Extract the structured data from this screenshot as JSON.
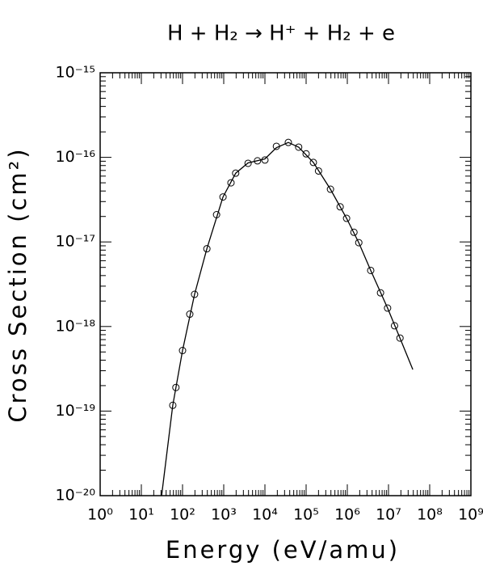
{
  "chart_data": {
    "type": "line",
    "title": "H + H₂ → H⁺ + H₂ + e",
    "x_label": "Energy (eV/amu)",
    "y_label": "Cross Section (cm²)",
    "x_log": true,
    "y_log": true,
    "xlim": [
      1,
      1000000000
    ],
    "ylim": [
      1e-20,
      1e-15
    ],
    "xticks": [
      {
        "value": 1,
        "label": "10⁰"
      },
      {
        "value": 10,
        "label": "10¹"
      },
      {
        "value": 100,
        "label": "10²"
      },
      {
        "value": 1000,
        "label": "10³"
      },
      {
        "value": 10000,
        "label": "10⁴"
      },
      {
        "value": 100000,
        "label": "10⁵"
      },
      {
        "value": 1000000,
        "label": "10⁶"
      },
      {
        "value": 10000000,
        "label": "10⁷"
      },
      {
        "value": 100000000,
        "label": "10⁸"
      },
      {
        "value": 1000000000,
        "label": "10⁹"
      }
    ],
    "yticks": [
      {
        "value": 1e-20,
        "label": "10⁻²⁰"
      },
      {
        "value": 1e-19,
        "label": "10⁻¹⁹"
      },
      {
        "value": 1e-18,
        "label": "10⁻¹⁸"
      },
      {
        "value": 1e-17,
        "label": "10⁻¹⁷"
      },
      {
        "value": 1e-16,
        "label": "10⁻¹⁶"
      },
      {
        "value": 1e-15,
        "label": "10⁻¹⁵"
      }
    ],
    "series": [
      {
        "kind": "markers",
        "color": "#000000",
        "x": [
          58,
          69,
          100,
          150,
          196,
          390,
          670,
          960,
          1500,
          1950,
          3900,
          6600,
          10000,
          19000,
          37000,
          66000,
          100000,
          150000,
          200000,
          390000,
          670000,
          960000,
          1450000,
          1900000,
          3700000,
          6400000,
          9500000,
          14000000,
          19000000
        ],
        "values": [
          1.17e-19,
          1.9e-19,
          5.2e-19,
          1.4e-18,
          2.4e-18,
          8.3e-18,
          2.1e-17,
          3.4e-17,
          5e-17,
          6.5e-17,
          8.5e-17,
          9.1e-17,
          9.3e-17,
          1.35e-16,
          1.5e-16,
          1.32e-16,
          1.1e-16,
          8.7e-17,
          6.9e-17,
          4.2e-17,
          2.6e-17,
          1.9e-17,
          1.3e-17,
          9.8e-18,
          4.6e-18,
          2.5e-18,
          1.65e-18,
          1.02e-18,
          7.3e-19
        ]
      },
      {
        "kind": "line",
        "color": "#000000",
        "x": [
          31,
          58,
          100,
          196,
          390,
          960,
          1950,
          3900,
          10000,
          19000,
          37000,
          66000,
          150000,
          390000,
          960000,
          1900000,
          3700000,
          9500000,
          19000000,
          39000000
        ],
        "values": [
          1e-20,
          1.17e-19,
          5.2e-19,
          2.4e-18,
          8.3e-18,
          3.4e-17,
          6.5e-17,
          8.6e-17,
          9.6e-17,
          1.3e-16,
          1.5e-16,
          1.32e-16,
          8.7e-17,
          4.2e-17,
          1.9e-17,
          9.8e-18,
          4.6e-18,
          1.65e-18,
          7.3e-19,
          3.1e-19
        ]
      }
    ]
  }
}
